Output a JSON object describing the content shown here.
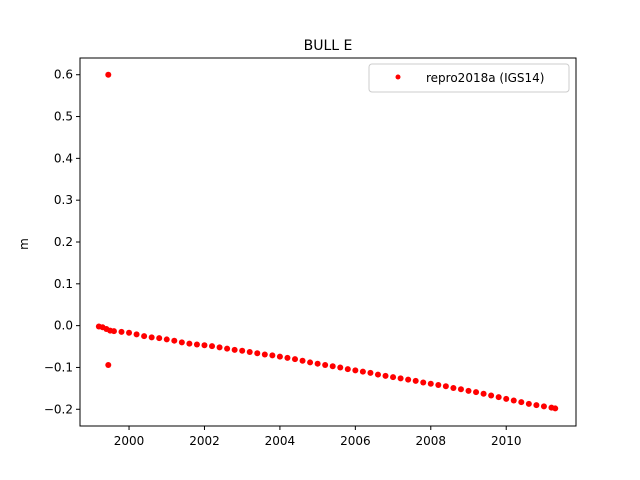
{
  "chart_data": {
    "type": "scatter",
    "title": "BULL E",
    "xlabel": "",
    "ylabel": "m",
    "xlim": [
      1998.7,
      2011.85
    ],
    "ylim": [
      -0.24,
      0.64
    ],
    "x_ticks": [
      2000,
      2002,
      2004,
      2006,
      2008,
      2010
    ],
    "x_tick_labels": [
      "2000",
      "2002",
      "2004",
      "2006",
      "2008",
      "2010"
    ],
    "y_ticks": [
      -0.2,
      -0.1,
      0.0,
      0.1,
      0.2,
      0.3,
      0.4,
      0.5,
      0.6
    ],
    "y_tick_labels": [
      "−0.2",
      "−0.1",
      "0.0",
      "0.1",
      "0.2",
      "0.3",
      "0.4",
      "0.5",
      "0.6"
    ],
    "grid": false,
    "legend_position": "top-right",
    "series": [
      {
        "name": "repro2018a (IGS14)",
        "color": "#ff0000",
        "marker": "dot",
        "points": [
          [
            1999.45,
            0.6
          ],
          [
            1999.45,
            -0.094
          ],
          [
            1999.2,
            -0.002
          ],
          [
            1999.3,
            -0.004
          ],
          [
            1999.4,
            -0.008
          ],
          [
            1999.5,
            -0.012
          ],
          [
            1999.6,
            -0.013
          ],
          [
            1999.8,
            -0.015
          ],
          [
            2000.0,
            -0.017
          ],
          [
            2000.2,
            -0.021
          ],
          [
            2000.4,
            -0.025
          ],
          [
            2000.6,
            -0.028
          ],
          [
            2000.8,
            -0.03
          ],
          [
            2001.0,
            -0.033
          ],
          [
            2001.2,
            -0.036
          ],
          [
            2001.4,
            -0.04
          ],
          [
            2001.6,
            -0.043
          ],
          [
            2001.8,
            -0.045
          ],
          [
            2002.0,
            -0.047
          ],
          [
            2002.2,
            -0.049
          ],
          [
            2002.4,
            -0.052
          ],
          [
            2002.6,
            -0.055
          ],
          [
            2002.8,
            -0.058
          ],
          [
            2003.0,
            -0.06
          ],
          [
            2003.2,
            -0.063
          ],
          [
            2003.4,
            -0.066
          ],
          [
            2003.6,
            -0.069
          ],
          [
            2003.8,
            -0.071
          ],
          [
            2004.0,
            -0.074
          ],
          [
            2004.2,
            -0.077
          ],
          [
            2004.4,
            -0.08
          ],
          [
            2004.6,
            -0.084
          ],
          [
            2004.8,
            -0.088
          ],
          [
            2005.0,
            -0.091
          ],
          [
            2005.2,
            -0.094
          ],
          [
            2005.4,
            -0.097
          ],
          [
            2005.6,
            -0.1
          ],
          [
            2005.8,
            -0.104
          ],
          [
            2006.0,
            -0.107
          ],
          [
            2006.2,
            -0.11
          ],
          [
            2006.4,
            -0.113
          ],
          [
            2006.6,
            -0.117
          ],
          [
            2006.8,
            -0.12
          ],
          [
            2007.0,
            -0.123
          ],
          [
            2007.2,
            -0.126
          ],
          [
            2007.4,
            -0.129
          ],
          [
            2007.6,
            -0.132
          ],
          [
            2007.8,
            -0.136
          ],
          [
            2008.0,
            -0.139
          ],
          [
            2008.2,
            -0.142
          ],
          [
            2008.4,
            -0.145
          ],
          [
            2008.6,
            -0.149
          ],
          [
            2008.8,
            -0.152
          ],
          [
            2009.0,
            -0.156
          ],
          [
            2009.2,
            -0.159
          ],
          [
            2009.4,
            -0.163
          ],
          [
            2009.6,
            -0.167
          ],
          [
            2009.8,
            -0.171
          ],
          [
            2010.0,
            -0.175
          ],
          [
            2010.2,
            -0.179
          ],
          [
            2010.4,
            -0.183
          ],
          [
            2010.6,
            -0.187
          ],
          [
            2010.8,
            -0.19
          ],
          [
            2011.0,
            -0.193
          ],
          [
            2011.2,
            -0.196
          ],
          [
            2011.3,
            -0.198
          ]
        ]
      }
    ]
  }
}
